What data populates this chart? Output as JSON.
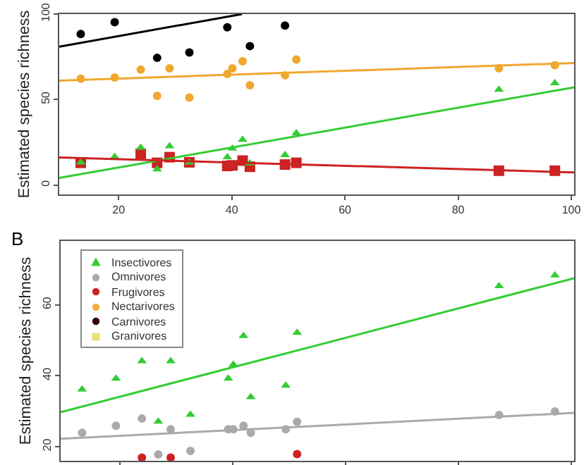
{
  "chart_data": [
    {
      "type": "scatter",
      "ylabel": "Estimated species richness",
      "xlim": [
        9.5,
        100.5
      ],
      "ylim": [
        -5.5,
        100
      ],
      "xticks": [
        20,
        40,
        60,
        80,
        100
      ],
      "yticks": [
        0,
        50,
        100
      ],
      "legend": false,
      "series": [
        {
          "type": "scatter",
          "marker": "circle",
          "color": "#000000",
          "x": [
            13.3,
            19.3,
            26.8,
            32.5,
            39.2,
            43.2,
            49.4
          ],
          "values": [
            88.4,
            95.3,
            74.4,
            77.5,
            92.3,
            81.3,
            93.3
          ]
        },
        {
          "type": "scatter",
          "marker": "circle",
          "color": "#f0a830",
          "x": [
            13.3,
            19.3,
            23.9,
            26.8,
            29,
            32.5,
            39.2,
            40.1,
            41.9,
            43.2,
            49.4,
            51.4,
            87.2,
            97.1
          ],
          "values": [
            62.2,
            62.9,
            67.5,
            52.2,
            68.3,
            51.2,
            65,
            68.3,
            72.4,
            58.4,
            64.2,
            73.4,
            68.3,
            70.1
          ]
        },
        {
          "type": "scatter",
          "marker": "square",
          "color": "#cc2222",
          "x": [
            13.3,
            23.9,
            26.8,
            29,
            32.5,
            39.2,
            40.1,
            41.9,
            43.2,
            49.4,
            51.4,
            87.2,
            97.1
          ],
          "values": [
            13,
            18.3,
            13,
            16.3,
            13.3,
            11.2,
            11.5,
            14.3,
            10.7,
            12,
            13,
            8.4,
            8.4
          ]
        },
        {
          "type": "scatter",
          "marker": "triangle",
          "color": "#33cc33",
          "x": [
            13.3,
            19.3,
            23.9,
            26.8,
            29,
            32.5,
            39.2,
            40.1,
            41.9,
            43.2,
            49.4,
            51.4,
            87.2,
            97.1
          ],
          "values": [
            13.3,
            16.6,
            21.9,
            9.2,
            22.7,
            13.3,
            16.3,
            21.4,
            26.5,
            12.7,
            17.6,
            30.3,
            55.8,
            59.6
          ]
        },
        {
          "type": "line",
          "color": "#000000",
          "x": [
            9.5,
            41.8
          ],
          "values": [
            80.9,
            100
          ]
        },
        {
          "type": "line",
          "color": "#f0a830",
          "x": [
            9.5,
            100.5
          ],
          "values": [
            61.1,
            71.4
          ]
        },
        {
          "type": "line",
          "color": "#33cc33",
          "x": [
            9.5,
            100.5
          ],
          "values": [
            4.2,
            57.2
          ]
        },
        {
          "type": "line",
          "color": "#cc2222",
          "x": [
            9.5,
            100.5
          ],
          "values": [
            16.1,
            7.4
          ]
        }
      ]
    },
    {
      "type": "scatter",
      "ylabel": "Estimated species richness",
      "annotations": [
        "B"
      ],
      "xlim": [
        9.5,
        100.5
      ],
      "ylim": [
        16,
        78
      ],
      "xticks": [
        20,
        40,
        60,
        80,
        100
      ],
      "yticks": [
        20,
        40,
        60
      ],
      "tick_labels": "y",
      "legend": "top left",
      "series": [
        {
          "type": "scatter",
          "name": "Insectivores",
          "marker": "triangle",
          "color": "#33cc33",
          "x": [
            13.3,
            19.3,
            23.9,
            26.8,
            29,
            32.5,
            39.2,
            40.1,
            41.9,
            43.2,
            49.4,
            51.4,
            87.2,
            97.1
          ],
          "values": [
            36.1,
            39.2,
            44.1,
            27.1,
            44.1,
            29,
            39.2,
            43.1,
            51.2,
            34,
            37.2,
            52.1,
            65.3,
            68.3
          ]
        },
        {
          "type": "scatter",
          "name": "Omnivores",
          "marker": "circle",
          "color": "#aaaaaa",
          "x": [
            13.3,
            19.3,
            23.9,
            26.8,
            29,
            32.5,
            39.2,
            40.1,
            41.9,
            43.2,
            49.4,
            51.4,
            87.2,
            97.1
          ],
          "values": [
            23.9,
            25.9,
            27.9,
            17.8,
            24.9,
            18.8,
            24.9,
            24.9,
            25.9,
            23.9,
            24.9,
            27,
            28.9,
            29.9
          ]
        },
        {
          "type": "scatter",
          "name": "Frugivores",
          "marker": "circle",
          "color": "#cc2222",
          "x": [
            23.9,
            29,
            51.4
          ],
          "values": [
            16.9,
            16.9,
            17.9
          ]
        },
        {
          "type": "scatter",
          "name": "Nectarivores",
          "marker": "circle",
          "color": "#f0b040"
        },
        {
          "type": "scatter",
          "name": "Carnivores",
          "marker": "circle",
          "color": "#330000"
        },
        {
          "type": "scatter",
          "name": "Granivores",
          "marker": "square",
          "color": "#e8e070"
        },
        {
          "type": "line",
          "color": "#33cc33",
          "x": [
            9.5,
            100.5
          ],
          "values": [
            29.7,
            67.5
          ]
        },
        {
          "type": "line",
          "color": "#aaaaaa",
          "x": [
            9.5,
            100.5
          ],
          "values": [
            22.2,
            29.5
          ]
        }
      ]
    }
  ]
}
